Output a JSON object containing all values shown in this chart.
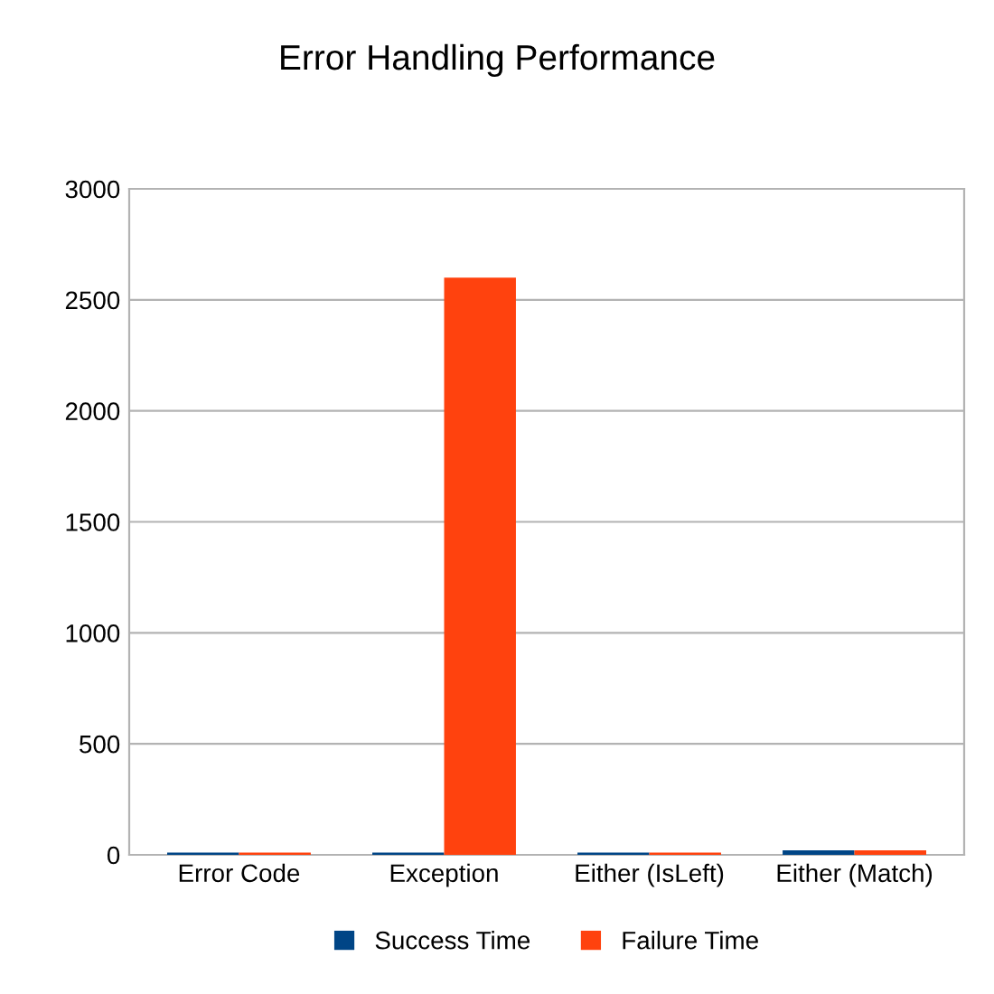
{
  "chart_data": {
    "type": "bar",
    "title": "Error Handling Performance",
    "categories": [
      "Error Code",
      "Exception",
      "Either (IsLeft)",
      "Either (Match)"
    ],
    "series": [
      {
        "name": "Success Time",
        "color": "#004586",
        "values": [
          10,
          10,
          10,
          20
        ]
      },
      {
        "name": "Failure Time",
        "color": "#ff420e",
        "values": [
          10,
          2600,
          10,
          20
        ]
      }
    ],
    "ylim": [
      0,
      3000
    ],
    "yticks": [
      0,
      500,
      1000,
      1500,
      2000,
      2500,
      3000
    ],
    "grid": "y",
    "legend": "bottom"
  }
}
